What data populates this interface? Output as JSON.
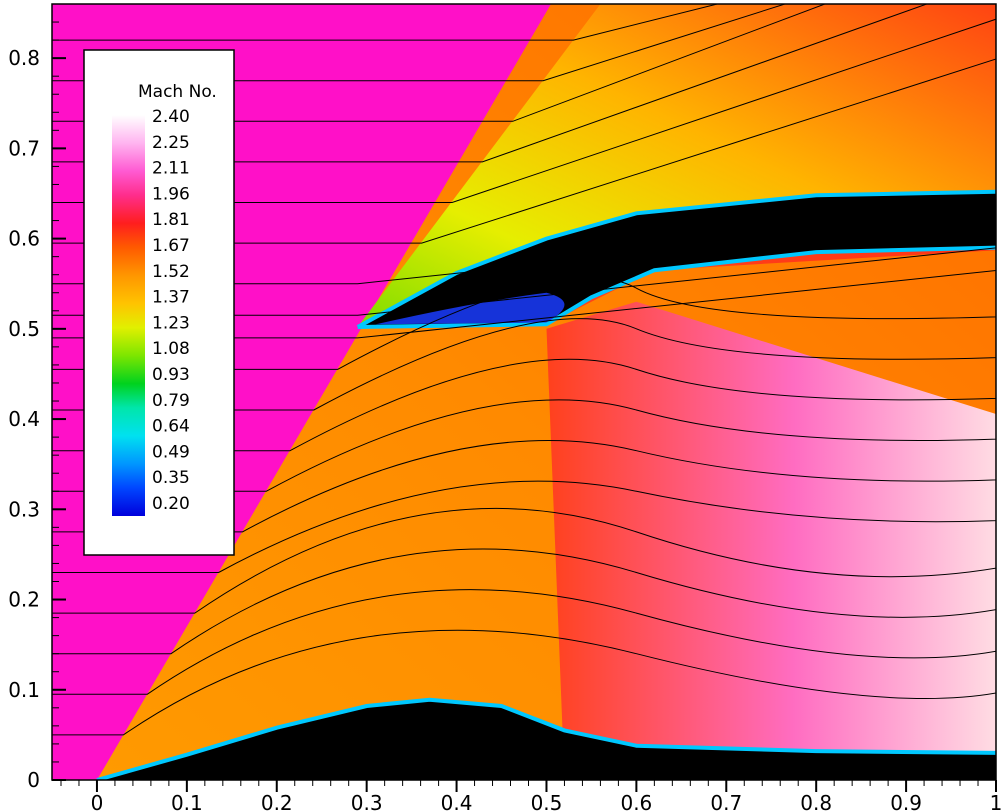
{
  "chart_data": {
    "type": "heatmap",
    "quantity": "Mach No.",
    "xlim": [
      -0.05,
      1.0
    ],
    "ylim": [
      0,
      0.86
    ],
    "x_ticks": [
      "0",
      "0.1",
      "0.2",
      "0.3",
      "0.4",
      "0.5",
      "0.6",
      "0.7",
      "0.8",
      "0.9",
      "1"
    ],
    "x_tick_values": [
      0,
      0.1,
      0.2,
      0.3,
      0.4,
      0.5,
      0.6,
      0.7,
      0.8,
      0.9,
      1.0
    ],
    "y_ticks": [
      "0",
      "0.1",
      "0.2",
      "0.3",
      "0.4",
      "0.5",
      "0.6",
      "0.7",
      "0.8"
    ],
    "y_tick_values": [
      0,
      0.1,
      0.2,
      0.3,
      0.4,
      0.5,
      0.6,
      0.7,
      0.8
    ],
    "legend": {
      "title": "Mach No.",
      "placement": "top-left",
      "levels": [
        "2.40",
        "2.25",
        "2.11",
        "1.96",
        "1.81",
        "1.67",
        "1.52",
        "1.37",
        "1.23",
        "1.08",
        "0.93",
        "0.79",
        "0.64",
        "0.49",
        "0.35",
        "0.20"
      ],
      "colors": [
        "#ffffff",
        "#ffb4f0",
        "#ff5ad2",
        "#ff2d8c",
        "#ff1e1e",
        "#ff5a00",
        "#ff9600",
        "#ffc300",
        "#e1f000",
        "#7de600",
        "#00d21e",
        "#00e6aa",
        "#00e1f0",
        "#0096ff",
        "#0046ff",
        "#0000dc"
      ]
    },
    "colors": {
      "freestream": "#ff10c8",
      "body": "#000000",
      "background": "#ffffff"
    },
    "body_lower_surface": [
      [
        0,
        0
      ],
      [
        0.1,
        0.028
      ],
      [
        0.2,
        0.058
      ],
      [
        0.3,
        0.082
      ],
      [
        0.37,
        0.089
      ],
      [
        0.45,
        0.082
      ],
      [
        0.52,
        0.055
      ],
      [
        0.6,
        0.038
      ],
      [
        0.8,
        0.032
      ],
      [
        1.0,
        0.03
      ]
    ],
    "body_upper_cowl": [
      [
        0.29,
        0.502
      ],
      [
        0.4,
        0.562
      ],
      [
        0.5,
        0.6
      ],
      [
        0.6,
        0.628
      ],
      [
        0.8,
        0.648
      ],
      [
        1.0,
        0.652
      ]
    ],
    "body_lower_cowl": [
      [
        0.29,
        0.502
      ],
      [
        0.5,
        0.505
      ],
      [
        0.55,
        0.535
      ],
      [
        0.62,
        0.565
      ],
      [
        0.8,
        0.585
      ],
      [
        1.0,
        0.59
      ]
    ],
    "streamline_start_y": [
      0.05,
      0.095,
      0.14,
      0.185,
      0.23,
      0.275,
      0.32,
      0.365,
      0.41,
      0.455,
      0.49,
      0.515,
      0.55,
      0.595,
      0.64,
      0.685,
      0.73,
      0.775,
      0.82,
      0.86
    ]
  }
}
